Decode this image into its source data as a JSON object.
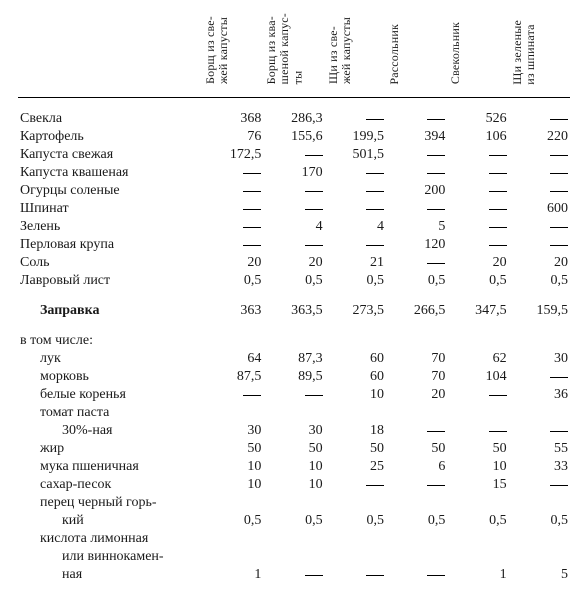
{
  "columns": [
    {
      "key": "c1",
      "label": "Борщ из све-\nжей капусты"
    },
    {
      "key": "c2",
      "label": "Борщ из ква-\nшеной капус-\nты"
    },
    {
      "key": "c3",
      "label": "Щи из све-\nжей капусты"
    },
    {
      "key": "c4",
      "label": "Рассольник"
    },
    {
      "key": "c5",
      "label": "Свекольник"
    },
    {
      "key": "c6",
      "label": "Щи зеленые\nиз шпината"
    }
  ],
  "rows": [
    {
      "label": "Свекла",
      "vals": [
        "368",
        "286,3",
        "—",
        "—",
        "526",
        "—"
      ]
    },
    {
      "label": "Картофель",
      "vals": [
        "76",
        "155,6",
        "199,5",
        "394",
        "106",
        "220"
      ]
    },
    {
      "label": "Капуста свежая",
      "vals": [
        "172,5",
        "—",
        "501,5",
        "—",
        "—",
        "—"
      ]
    },
    {
      "label": "Капуста квашеная",
      "vals": [
        "—",
        "170",
        "—",
        "—",
        "—",
        "—"
      ]
    },
    {
      "label": "Огурцы соленые",
      "vals": [
        "—",
        "—",
        "—",
        "200",
        "—",
        "—"
      ]
    },
    {
      "label": "Шпинат",
      "vals": [
        "—",
        "—",
        "—",
        "—",
        "—",
        "600"
      ]
    },
    {
      "label": "Зелень",
      "vals": [
        "—",
        "4",
        "4",
        "5",
        "—",
        "—"
      ]
    },
    {
      "label": "Перловая крупа",
      "vals": [
        "—",
        "—",
        "—",
        "120",
        "—",
        "—"
      ]
    },
    {
      "label": "Соль",
      "vals": [
        "20",
        "20",
        "21",
        "—",
        "20",
        "20"
      ]
    },
    {
      "label": "Лавровый лист",
      "vals": [
        "0,5",
        "0,5",
        "0,5",
        "0,5",
        "0,5",
        "0,5"
      ]
    }
  ],
  "zapravka": {
    "label": "Заправка",
    "vals": [
      "363",
      "363,5",
      "273,5",
      "266,5",
      "347,5",
      "159,5"
    ]
  },
  "sub_heading": "в том числе:",
  "subrows": [
    {
      "label": "лук",
      "indent": 1,
      "vals": [
        "64",
        "87,3",
        "60",
        "70",
        "62",
        "30"
      ]
    },
    {
      "label": "морковь",
      "indent": 1,
      "vals": [
        "87,5",
        "89,5",
        "60",
        "70",
        "104",
        "—"
      ]
    },
    {
      "label": "белые коренья",
      "indent": 1,
      "vals": [
        "—",
        "—",
        "10",
        "20",
        "—",
        "36"
      ]
    },
    {
      "label": "томат паста",
      "indent": 1,
      "vals": [
        "",
        "",
        "",
        "",
        "",
        ""
      ]
    },
    {
      "label": "30%-ная",
      "indent": 2,
      "vals": [
        "30",
        "30",
        "18",
        "—",
        "—",
        "—"
      ]
    },
    {
      "label": "жир",
      "indent": 1,
      "vals": [
        "50",
        "50",
        "50",
        "50",
        "50",
        "55"
      ]
    },
    {
      "label": "мука пшеничная",
      "indent": 1,
      "vals": [
        "10",
        "10",
        "25",
        "6",
        "10",
        "33"
      ]
    },
    {
      "label": "сахар-песок",
      "indent": 1,
      "vals": [
        "10",
        "10",
        "—",
        "—",
        "15",
        "—"
      ]
    },
    {
      "label": "перец черный горь-",
      "indent": 1,
      "vals": [
        "",
        "",
        "",
        "",
        "",
        ""
      ]
    },
    {
      "label": "кий",
      "indent": 2,
      "vals": [
        "0,5",
        "0,5",
        "0,5",
        "0,5",
        "0,5",
        "0,5"
      ]
    },
    {
      "label": "кислота лимонная",
      "indent": 1,
      "vals": [
        "",
        "",
        "",
        "",
        "",
        ""
      ]
    },
    {
      "label": "или виннокамен-",
      "indent": 2,
      "vals": [
        "",
        "",
        "",
        "",
        "",
        ""
      ]
    },
    {
      "label": "ная",
      "indent": 2,
      "vals": [
        "1",
        "—",
        "—",
        "—",
        "1",
        "5"
      ]
    }
  ]
}
